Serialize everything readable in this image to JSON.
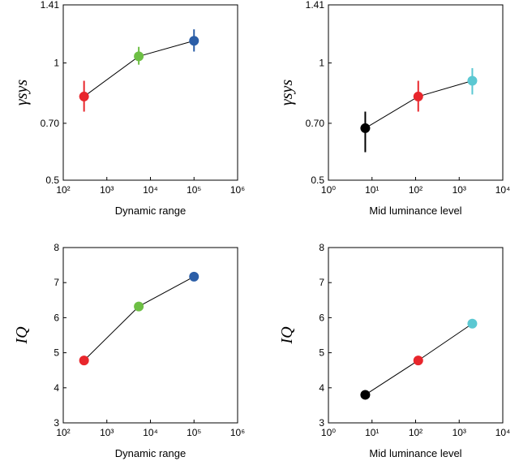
{
  "chart_data": [
    {
      "type": "errorline",
      "xlabel": "Dynamic range",
      "ylabel": "γsys",
      "xscale": "log",
      "yscale": "log",
      "x": [
        300,
        5400,
        100000
      ],
      "values": [
        0.82,
        1.04,
        1.14
      ],
      "ylow": [
        0.75,
        0.99,
        1.07
      ],
      "yhigh": [
        0.9,
        1.1,
        1.22
      ],
      "colors": [
        "#e8262c",
        "#6dbf44",
        "#2b5ea7"
      ],
      "xlim": [
        100,
        1000000
      ],
      "xticks": [
        {
          "value": 100,
          "label": "10²"
        },
        {
          "value": 1000,
          "label": "10³"
        },
        {
          "value": 10000,
          "label": "10⁴"
        },
        {
          "value": 100000,
          "label": "10⁵"
        },
        {
          "value": 1000000,
          "label": "10⁶"
        }
      ],
      "ylim": [
        0.5,
        1.41
      ],
      "yticks": [
        0.5,
        {
          "value": 0.7,
          "label": "0.70"
        },
        1,
        1.41
      ]
    },
    {
      "type": "errorline",
      "xlabel": "Mid luminance level",
      "ylabel": "γsys",
      "xscale": "log",
      "yscale": "log",
      "x": [
        7,
        115,
        2000
      ],
      "values": [
        0.68,
        0.82,
        0.9
      ],
      "ylow": [
        0.59,
        0.75,
        0.83
      ],
      "yhigh": [
        0.75,
        0.9,
        0.97
      ],
      "colors": [
        "#000000",
        "#e8262c",
        "#5bc8d2"
      ],
      "xlim": [
        1,
        10000
      ],
      "xticks": [
        {
          "value": 1,
          "label": "10⁰"
        },
        {
          "value": 10,
          "label": "10¹"
        },
        {
          "value": 100,
          "label": "10²"
        },
        {
          "value": 1000,
          "label": "10³"
        },
        {
          "value": 10000,
          "label": "10⁴"
        }
      ],
      "ylim": [
        0.5,
        1.41
      ],
      "yticks": [
        0.5,
        {
          "value": 0.7,
          "label": "0.70"
        },
        1,
        1.41
      ]
    },
    {
      "type": "errorline",
      "xlabel": "Dynamic range",
      "ylabel": "IQ",
      "xscale": "log",
      "yscale": "linear",
      "x": [
        300,
        5400,
        100000
      ],
      "values": [
        4.78,
        6.32,
        7.17
      ],
      "ylow": [
        4.73,
        6.27,
        7.12
      ],
      "yhigh": [
        4.83,
        6.37,
        7.22
      ],
      "colors": [
        "#e8262c",
        "#6dbf44",
        "#2b5ea7"
      ],
      "xlim": [
        100,
        1000000
      ],
      "xticks": [
        {
          "value": 100,
          "label": "10²"
        },
        {
          "value": 1000,
          "label": "10³"
        },
        {
          "value": 10000,
          "label": "10⁴"
        },
        {
          "value": 100000,
          "label": "10⁵"
        },
        {
          "value": 1000000,
          "label": "10⁶"
        }
      ],
      "ylim": [
        3,
        8
      ],
      "yticks": [
        3,
        4,
        5,
        6,
        7,
        8
      ]
    },
    {
      "type": "errorline",
      "xlabel": "Mid luminance level",
      "ylabel": "IQ",
      "xscale": "log",
      "yscale": "linear",
      "x": [
        7,
        115,
        2000
      ],
      "values": [
        3.8,
        4.78,
        5.83
      ],
      "ylow": [
        3.75,
        4.73,
        5.73
      ],
      "yhigh": [
        3.85,
        4.83,
        5.93
      ],
      "colors": [
        "#000000",
        "#e8262c",
        "#5bc8d2"
      ],
      "xlim": [
        1,
        10000
      ],
      "xticks": [
        {
          "value": 1,
          "label": "10⁰"
        },
        {
          "value": 10,
          "label": "10¹"
        },
        {
          "value": 100,
          "label": "10²"
        },
        {
          "value": 1000,
          "label": "10³"
        },
        {
          "value": 10000,
          "label": "10⁴"
        }
      ],
      "ylim": [
        3,
        8
      ],
      "yticks": [
        3,
        4,
        5,
        6,
        7,
        8
      ]
    }
  ]
}
